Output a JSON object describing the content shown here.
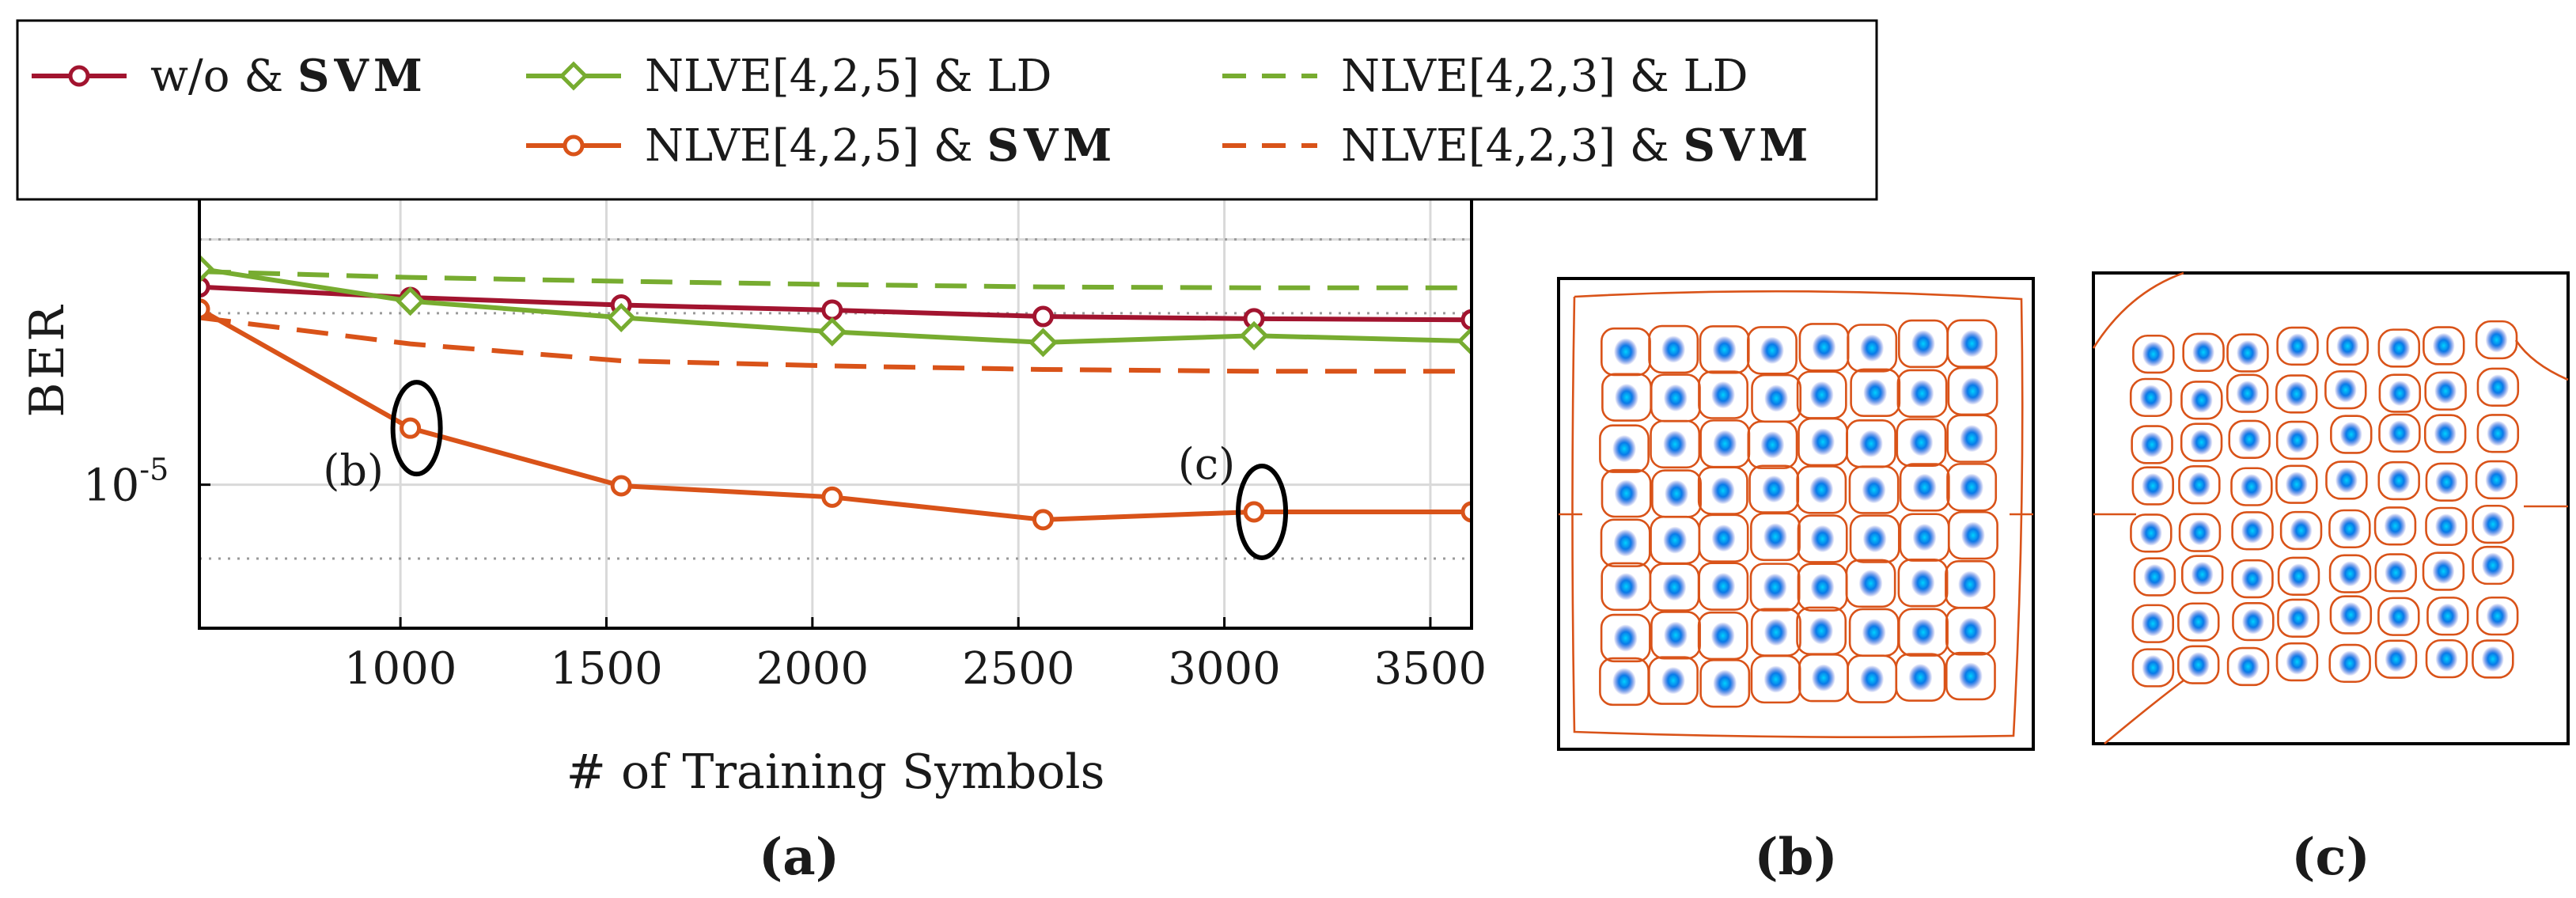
{
  "chart_data": [
    {
      "panel": "(a)",
      "type": "line",
      "xlabel": "# of Training Symbols",
      "ylabel": "BER",
      "yscale": "log",
      "xlim": [
        512,
        3600
      ],
      "ylim": [
        2.6e-06,
        0.00015
      ],
      "xticks": [
        1000,
        1500,
        2000,
        2500,
        3000,
        3500
      ],
      "xtick_labels": [
        "1000",
        "1500",
        "2000",
        "2500",
        "3000",
        "3500"
      ],
      "ytick_labels": [
        {
          "value": 1e-05,
          "base": "10",
          "exponent": "-5"
        }
      ],
      "grid": true,
      "legend": {
        "position": "top",
        "entries": [
          {
            "series": "wo_svm",
            "text": "w/o & ",
            "bold": "SVM"
          },
          {
            "series": "nlve425_ld",
            "text": "NLVE[4,2,5] & LD",
            "bold": ""
          },
          {
            "series": "nlve423_ld",
            "text": "NLVE[4,2,3] & LD",
            "bold": ""
          },
          {
            "series": "nlve425_svm",
            "text": "NLVE[4,2,5] & ",
            "bold": "SVM"
          },
          {
            "series": "nlve423_svm",
            "text": "NLVE[4,2,3] & ",
            "bold": "SVM"
          }
        ]
      },
      "series": [
        {
          "id": "wo_svm",
          "name": "w/o & SVM",
          "color": "#a2142f",
          "style": "solid",
          "marker": "circle",
          "x": [
            512,
            1024,
            1536,
            2048,
            2560,
            3072,
            3600
          ],
          "y": [
            6.4e-05,
            5.8e-05,
            5.4e-05,
            5.15e-05,
            4.85e-05,
            4.75e-05,
            4.7e-05
          ]
        },
        {
          "id": "nlve425_ld",
          "name": "NLVE[4,2,5] & LD",
          "color": "#77ac30",
          "style": "solid",
          "marker": "diamond",
          "x": [
            512,
            1024,
            1536,
            2048,
            2560,
            3072,
            3600
          ],
          "y": [
            7.6e-05,
            5.6e-05,
            4.8e-05,
            4.2e-05,
            3.8e-05,
            4.05e-05,
            3.85e-05
          ]
        },
        {
          "id": "nlve425_svm",
          "name": "NLVE[4,2,5] & SVM",
          "color": "#d95319",
          "style": "solid",
          "marker": "circle",
          "x": [
            512,
            1024,
            1536,
            2048,
            2560,
            3072,
            3600
          ],
          "y": [
            5.2e-05,
            1.7e-05,
            9.9e-06,
            8.9e-06,
            7.2e-06,
            7.75e-06,
            7.75e-06
          ]
        },
        {
          "id": "nlve423_ld",
          "name": "NLVE[4,2,3] & LD",
          "color": "#77ac30",
          "style": "dashed",
          "marker": "none",
          "x": [
            512,
            1024,
            1536,
            2048,
            2560,
            3072,
            3600
          ],
          "y": [
            7.4e-05,
            7e-05,
            6.75e-05,
            6.55e-05,
            6.4e-05,
            6.35e-05,
            6.35e-05
          ]
        },
        {
          "id": "nlve423_svm",
          "name": "NLVE[4,2,3] & SVM",
          "color": "#d95319",
          "style": "dashed",
          "marker": "none",
          "x": [
            512,
            1024,
            1536,
            2048,
            2560,
            3072,
            3600
          ],
          "y": [
            4.8e-05,
            3.75e-05,
            3.2e-05,
            3.05e-05,
            2.95e-05,
            2.9e-05,
            2.9e-05
          ]
        }
      ],
      "annotations": [
        {
          "text": "(b)",
          "x": 1024,
          "y": 1.7e-05
        },
        {
          "text": "(c)",
          "x": 3072,
          "y": 7.75e-06
        }
      ]
    },
    {
      "panel": "(b)",
      "type": "scatter",
      "description_grid": "8x8",
      "constellation_rows": 8,
      "constellation_cols": 8
    },
    {
      "panel": "(c)",
      "type": "scatter",
      "constellation_rows": 8,
      "constellation_cols": 8
    }
  ],
  "captions": {
    "a": "(a)",
    "b": "(b)",
    "c": "(c)"
  },
  "colors": {
    "point_core": "#00c8ff",
    "point_mid": "#0070e0",
    "point_outer": "#0a28c8",
    "boundary": "#d95319"
  }
}
